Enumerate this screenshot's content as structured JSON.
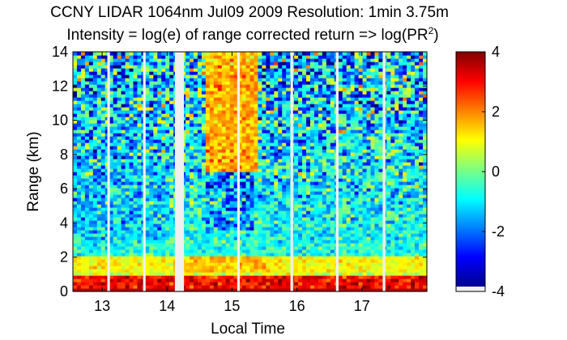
{
  "chart_data": {
    "type": "heatmap",
    "title": "CCNY LIDAR 1064nm Jul09 2009 Resolution: 1min 3.75m",
    "subtitle_main": "Intensity = log(e) of range corrected return => log(PR",
    "subtitle_sup": "2",
    "subtitle_end": ")",
    "xlabel": "Local Time",
    "ylabel": "Range (km)",
    "xlim": [
      12.55,
      18.0
    ],
    "ylim": [
      0,
      14
    ],
    "xticks": [
      13,
      14,
      15,
      16,
      17
    ],
    "yticks": [
      0,
      2,
      4,
      6,
      8,
      10,
      12,
      14
    ],
    "colorbar": {
      "range": [
        -4,
        4
      ],
      "ticks": [
        4,
        2,
        0,
        -2,
        -4
      ],
      "colormap": "jet"
    },
    "data_gaps_hours": [
      {
        "start": 13.08,
        "end": 13.12
      },
      {
        "start": 13.63,
        "end": 13.67
      },
      {
        "start": 14.12,
        "end": 14.26
      },
      {
        "start": 15.08,
        "end": 15.12
      },
      {
        "start": 15.9,
        "end": 15.94
      },
      {
        "start": 16.6,
        "end": 16.64
      },
      {
        "start": 17.32,
        "end": 17.36
      }
    ],
    "features": [
      {
        "name": "boundary layer",
        "x_range": [
          12.55,
          18.0
        ],
        "y_range": [
          0,
          1.0
        ],
        "value": 3.5
      },
      {
        "name": "elevated aerosol layer",
        "x_range": [
          12.55,
          18.0
        ],
        "y_range": [
          1.2,
          2.0
        ],
        "value": 1.2
      },
      {
        "name": "high cloud",
        "x_range": [
          14.6,
          15.4
        ],
        "y_range": [
          7,
          14
        ],
        "value": 1.5
      },
      {
        "name": "mid-level low return",
        "x_range": [
          14.6,
          15.3
        ],
        "y_range": [
          3.5,
          7
        ],
        "value": -2.5
      }
    ]
  }
}
